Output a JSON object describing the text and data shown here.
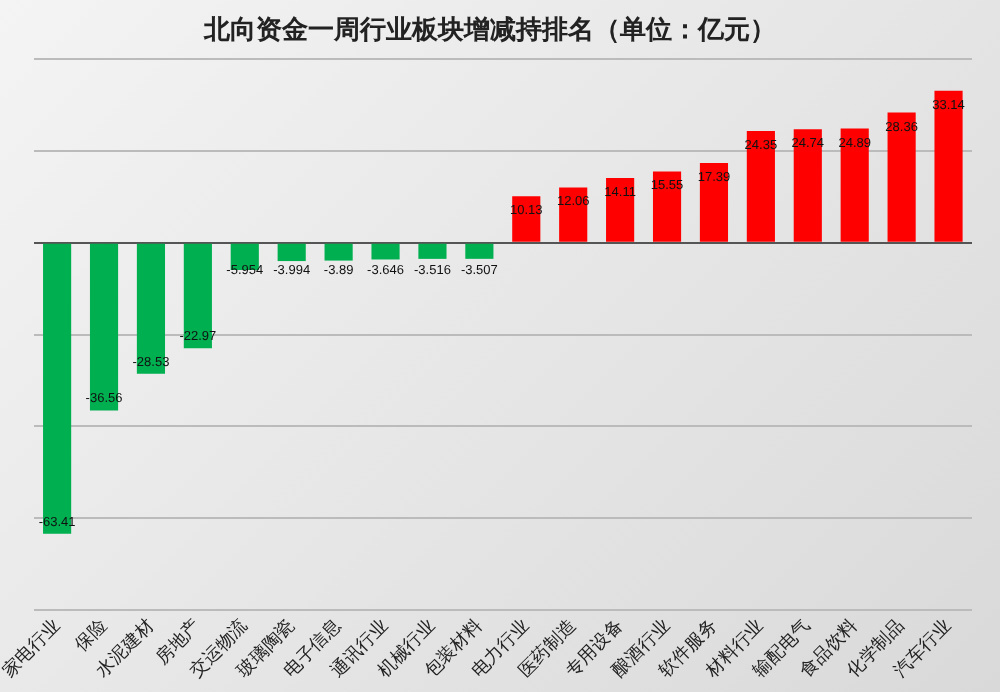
{
  "chart_data": {
    "type": "bar",
    "title": "北向资金一周行业板块增减持排名（单位：亿元）",
    "categories": [
      "家电行业",
      "保险",
      "水泥建材",
      "房地产",
      "交运物流",
      "玻璃陶瓷",
      "电子信息",
      "通讯行业",
      "机械行业",
      "包装材料",
      "电力行业",
      "医药制造",
      "专用设备",
      "酿酒行业",
      "软件服务",
      "材料行业",
      "输配电气",
      "食品饮料",
      "化学制品",
      "汽车行业"
    ],
    "values": [
      -63.41,
      -36.56,
      -28.53,
      -22.97,
      -5.954,
      -3.994,
      -3.89,
      -3.646,
      -3.516,
      -3.507,
      10.13,
      12.06,
      14.11,
      15.55,
      17.39,
      24.35,
      24.74,
      24.89,
      28.36,
      33.14
    ],
    "colors": [
      "#00b050",
      "#00b050",
      "#00b050",
      "#00b050",
      "#00b050",
      "#00b050",
      "#00b050",
      "#00b050",
      "#00b050",
      "#00b050",
      "#ff0000",
      "#ff0000",
      "#ff0000",
      "#ff0000",
      "#ff0000",
      "#ff0000",
      "#ff0000",
      "#ff0000",
      "#ff0000",
      "#ff0000"
    ],
    "ylim": [
      -80,
      40
    ],
    "yticks": [
      {
        "value": -80,
        "label": null
      },
      {
        "value": -60,
        "label": null
      },
      {
        "value": -40,
        "label": null
      },
      {
        "value": -20,
        "label": null
      },
      {
        "value": 0,
        "label": null
      },
      {
        "value": 20,
        "label": null
      },
      {
        "value": 40,
        "label": null
      }
    ],
    "tick_labels": "x",
    "grid": "y",
    "data_labels": true
  }
}
